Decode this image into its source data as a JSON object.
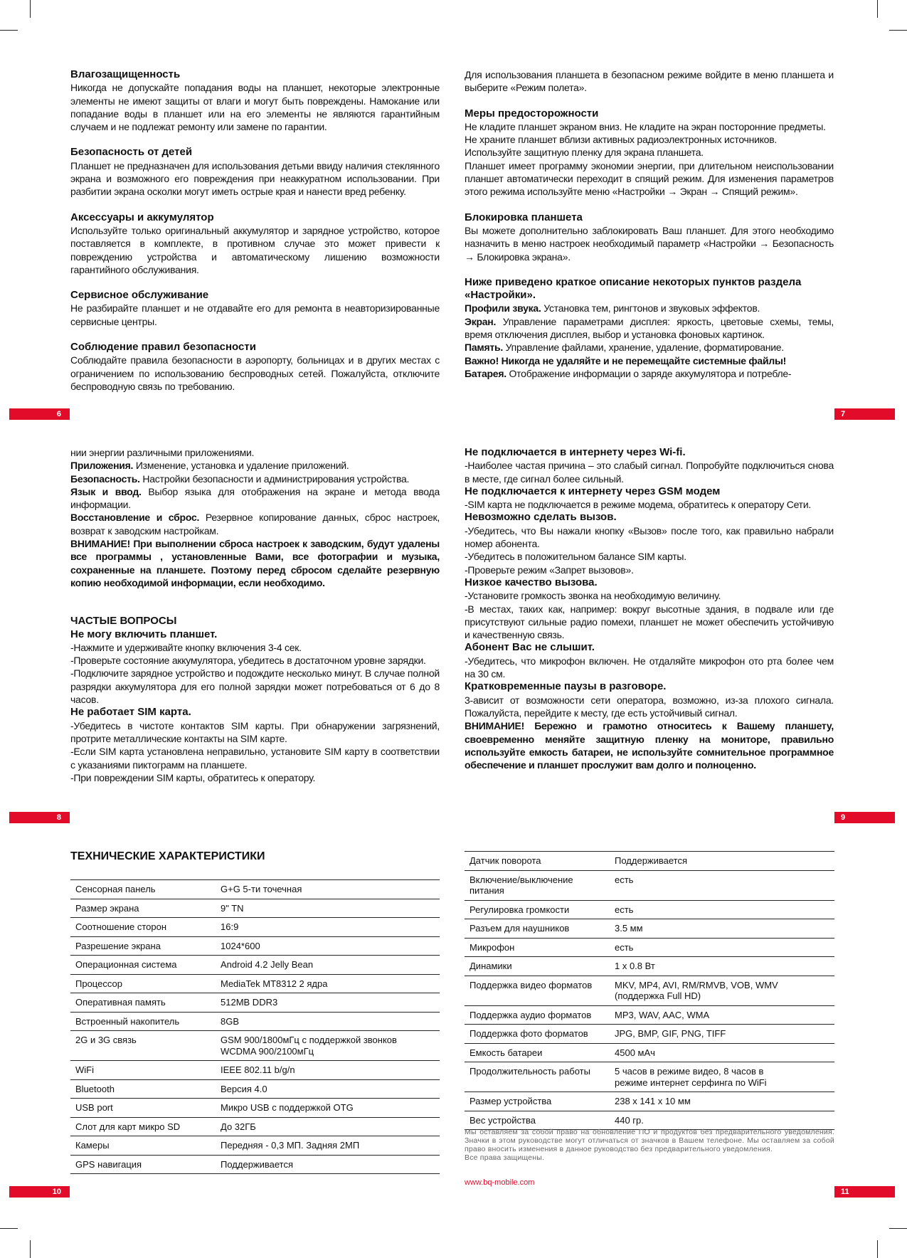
{
  "pages": {
    "p6": {
      "number": "6",
      "blocks": [
        {
          "h": "Влагозащищенность"
        },
        {
          "p": "Никогда не допускайте попадания воды на планшет, некоторые электронные элементы не имеют защиты от влаги и могут быть повреждены. Намокание или попадание воды в планшет или на его элементы не являются гарантийным случаем и не подлежат ремонту или замене по гарантии."
        },
        {
          "h": "Безопасность от детей"
        },
        {
          "p": "Планшет не предназначен для использования детьми ввиду наличия стеклянного экрана и возможного его повреждения при неаккуратном использовании. При разбитии экрана осколки могут иметь острые края и нанести вред ребенку."
        },
        {
          "h": "Аксессуары и аккумулятор"
        },
        {
          "p": "Используйте только оригинальный аккумулятор и зарядное устройство, которое поставляется в комплекте, в противном случае это может привести к повреждению устройства и автоматическому лишению возможности гарантийного обслуживания."
        },
        {
          "h": "Сервисное обслуживание"
        },
        {
          "p": "Не разбирайте планшет и не отдавайте его для ремонта в неавторизированные сервисные центры."
        },
        {
          "h": "Соблюдение правил безопасности"
        },
        {
          "p": "Соблюдайте правила безопасности в аэропорту, больницах и в других местах с ограничением по использованию беспроводных сетей. Пожалуйста, отключите беспроводную связь по требованию."
        }
      ]
    },
    "p7": {
      "number": "7",
      "blocks": [
        {
          "p": "Для использования планшета в безопасном режиме войдите в меню планшета и выберите «Режим полета»."
        },
        {
          "h": "Меры предосторожности"
        },
        {
          "p": "Не кладите планшет экраном вниз. Не кладите на экран посторонние предметы."
        },
        {
          "p": "Не храните планшет вблизи активных радиоэлектронных источников."
        },
        {
          "p": "Используйте защитную пленку для экрана планшета."
        },
        {
          "p": "Планшет имеет программу экономии энергии, при длительном неиспользовании планшет автоматически переходит в спящий режим. Для изменения параметров этого режима используйте меню «Настройки → Экран → Спящий режим»."
        },
        {
          "h": "Блокировка планшета"
        },
        {
          "p": "Вы можете дополнительно заблокировать Ваш планшет.  Для этого необходимо назначить в меню настроек необходимый параметр «Настройки → Безопасность → Блокировка экрана»."
        },
        {
          "h": "Ниже приведено краткое описание некоторых пунктов раздела «Настройки»."
        },
        {
          "b": "Профили звука.",
          "p": " Установка тем, рингтонов и звуковых эффектов."
        },
        {
          "b": "Экран.",
          "p": " Управление параметрами дисплея: яркость, цветовые схемы, темы, время отключения дисплея, выбор и установка фоновых картинок."
        },
        {
          "b": "Память.",
          "p": " Управление файлами, хранение, удаление, форматирование."
        },
        {
          "b": "Важно! Никогда не удаляйте и не перемещайте системные файлы!"
        },
        {
          "b": "Батарея.",
          "p": " Отображение информации о заряде аккумулятора и потребле-"
        }
      ]
    },
    "p8": {
      "number": "8",
      "blocks": [
        {
          "p": "нии энергии различными приложениями."
        },
        {
          "b": "Приложения.",
          "p": " Изменение, установка и удаление приложений."
        },
        {
          "b": "Безопасность.",
          "p": " Настройки безопасности и администрирования устройства."
        },
        {
          "b": "Язык и ввод.",
          "p": " Выбор языка для отображения на экране и метода ввода информации."
        },
        {
          "b": "Восстановление и сброс.",
          "p": " Резервное копирование данных, сброс настроек, возврат к заводским настройкам."
        },
        {
          "b": "ВНИМАНИЕ! При выполнении сброса настроек к заводским, будут удалены все программы , установленные Вами, все фотографии и музыка, сохраненные на планшете. Поэтому перед сбросом сделайте резервную копию необходимой информации, если необходимо."
        },
        {
          "gap": true
        },
        {
          "h": "ЧАСТЫЕ ВОПРОСЫ",
          "first": true
        },
        {
          "h": "Не могу включить планшет.",
          "first": true
        },
        {
          "p": "-Нажмите и удерживайте кнопку включения 3-4 сек."
        },
        {
          "p": "-Проверьте состояние аккумулятора, убедитесь в достаточном уровне зарядки."
        },
        {
          "p": "-Подключите зарядное устройство и подождите несколько минут. В случае полной разрядки аккумулятора для его полной зарядки может потребоваться от 6 до 8 часов."
        },
        {
          "h": "Не работает SIM карта.",
          "first": true
        },
        {
          "p": "-Убедитесь в чистоте контактов SIM карты. При обнаружении загрязнений, протрите металлические контакты на SIM карте."
        },
        {
          "p": "-Если SIM карта установлена неправильно, установите SIM карту в соответствии с указаниями пиктограмм на планшете."
        },
        {
          "p": "-При повреждении SIM карты, обратитесь к оператору."
        }
      ]
    },
    "p9": {
      "number": "9",
      "blocks": [
        {
          "h": "Не подключается в интернету через Wi-fi.",
          "first": true
        },
        {
          "p": "-Наиболее частая причина – это слабый сигнал. Попробуйте подключиться снова в месте, где сигнал более сильный."
        },
        {
          "h": "Не подключается к интернету через GSM модем",
          "first": true
        },
        {
          "p": "-SIM карта не подключается в режиме модема, обратитесь к оператору Сети."
        },
        {
          "h": "Невозможно сделать вызов.",
          "first": true
        },
        {
          "p": "-Убедитесь, что Вы нажали кнопку «Вызов» после того, как правильно набрали номер абонента."
        },
        {
          "p": "-Убедитесь в положительном балансе SIM карты."
        },
        {
          "p": "-Проверьте режим «Запрет вызовов»."
        },
        {
          "h": "Низкое качество вызова.",
          "first": true
        },
        {
          "p": "-Установите громкость звонка на необходимую величину."
        },
        {
          "p": "-В местах, таких как, например: вокруг высотные здания, в подвале или где присутствуют сильные радио помехи, планшет не может обеспечить устойчивую и качественную связь."
        },
        {
          "h": "Абонент Вас не слышит.",
          "first": true
        },
        {
          "p": "-Убедитесь, что микрофон включен. Не отдаляйте микрофон ото рта более чем на 30 см."
        },
        {
          "h": "Кратковременные паузы в разговоре.",
          "first": true
        },
        {
          "p": "3-ависит от возможности сети оператора, возможно, из-за плохого сигнала. Пожалуйста, перейдите к месту, где есть устойчивый сигнал."
        },
        {
          "b": "ВНИМАНИЕ! Бережно и грамотно относитесь к Вашему планшету, своевременно меняйте защитную пленку на мониторе, правильно используйте емкость батареи, не используйте сомнительное программное обеспечение и планшет прослужит вам долго и полноценно."
        }
      ]
    },
    "p10": {
      "number": "10",
      "title": "ТЕХНИЧЕСКИЕ ХАРАКТЕРИСТИКИ",
      "rows": [
        [
          "Сенсорная панель",
          "G+G 5-ти точечная"
        ],
        [
          "Размер экрана",
          "9\" TN"
        ],
        [
          "Соотношение сторон",
          "16:9"
        ],
        [
          "Разрешение экрана",
          "1024*600"
        ],
        [
          "Операционная система",
          "Android 4.2 Jelly Bean"
        ],
        [
          "Процессор",
          "MediaTek MT8312 2 ядра"
        ],
        [
          "Оперативная память",
          "512MB DDR3"
        ],
        [
          "Встроенный накопитель",
          "8GB"
        ],
        [
          "2G и 3G связь",
          "GSM 900/1800мГц с поддержкой звонков\nWCDMA 900/2100мГц"
        ],
        [
          "WiFi",
          "IEEE 802.11 b/g/n"
        ],
        [
          "Bluetooth",
          "Версия 4.0"
        ],
        [
          "USB port",
          "Микро USB с поддержкой OTG"
        ],
        [
          "Слот для карт микро SD",
          "До 32ГБ"
        ],
        [
          "Камеры",
          "Передняя - 0,3 МП. Задняя 2МП"
        ],
        [
          "GPS навигация",
          "Поддерживается"
        ]
      ]
    },
    "p11": {
      "number": "11",
      "rows": [
        [
          "Датчик поворота",
          "Поддерживается"
        ],
        [
          "Включение/выключение питания",
          "есть"
        ],
        [
          "Регулировка громкости",
          "есть"
        ],
        [
          "Разъем для наушников",
          "3.5 мм"
        ],
        [
          "Микрофон",
          "есть"
        ],
        [
          "Динамики",
          "1 x 0.8 Вт"
        ],
        [
          "Поддержка видео форматов",
          "MKV, MP4, AVI, RM/RMVB, VOB, WMV\n(поддержка Full HD)"
        ],
        [
          "Поддержка аудио форматов",
          "MP3, WAV, AAC, WMA"
        ],
        [
          "Поддержка фото форматов",
          "JPG, BMP, GIF, PNG, TIFF"
        ],
        [
          "Емкость батареи",
          "4500 мАч"
        ],
        [
          "Продолжительность работы",
          "5 часов в режиме видео, 8 часов в\nрежиме интернет серфинга по WiFi"
        ],
        [
          "Размер устройства",
          "238 x 141 x 10 мм"
        ],
        [
          "Вес устройства",
          "440 гр."
        ]
      ],
      "note": "Мы оставляем за собой право на обновление ПО и продуктов без предварительного уведомления. Значки в этом руководстве могут отличаться от значков в Вашем телефоне. Мы оставляем за собой право вносить изменения в данное руководство без предварительного уведомления.",
      "rights": "Все права защищены.",
      "url": "www.bq-mobile.com"
    }
  },
  "colors": {
    "accent": "#e30b2a"
  }
}
